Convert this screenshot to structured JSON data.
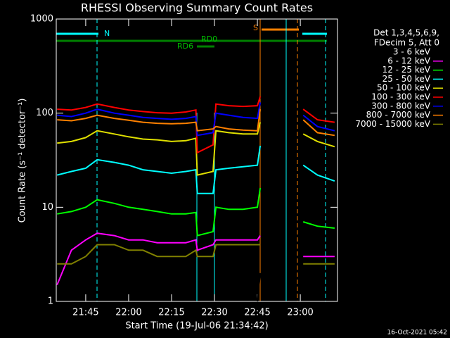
{
  "chart_data": {
    "type": "line",
    "title": "RHESSI Observing Summary Count Rates",
    "xlabel": "Start Time (19-Jul-06 21:34:42)",
    "ylabel": "Count Rate (s⁻¹ detector⁻¹)",
    "legend_title": [
      "Det 1,3,4,5,6,9,",
      "FDecim 5, Att 0"
    ],
    "footer": "16-Oct-2021 05:42",
    "annotations": [
      "N",
      "S",
      "RD0",
      "RD6"
    ],
    "log_y": true,
    "xlim": [
      1294.7,
      1393
    ],
    "xticks": [
      {
        "value": 1305,
        "label": "21:45"
      },
      {
        "value": 1320,
        "label": "22:00"
      },
      {
        "value": 1335,
        "label": "22:15"
      },
      {
        "value": 1350,
        "label": "22:30"
      },
      {
        "value": 1365,
        "label": "22:45"
      },
      {
        "value": 1380,
        "label": "23:00"
      }
    ],
    "ylim": [
      1,
      1000
    ],
    "yticks": [
      1,
      10,
      100,
      1000
    ],
    "x": [
      1295,
      1300,
      1305,
      1309,
      1315,
      1320,
      1325,
      1330,
      1335,
      1340,
      1343.5,
      1344,
      1349.5,
      1350.5,
      1355,
      1360,
      1365,
      1366,
      1373,
      1381,
      1386,
      1392
    ],
    "series": [
      {
        "name": "3 - 6 keV",
        "color": "#000000",
        "values": [
          null,
          null,
          null,
          null,
          null,
          null,
          null,
          null,
          null,
          null,
          null,
          null,
          null,
          null,
          null,
          null,
          1,
          2,
          null,
          null,
          null,
          null
        ]
      },
      {
        "name": "6 - 12 keV",
        "color": "#ff00ff",
        "values": [
          1.5,
          3.5,
          4.5,
          5.3,
          5,
          4.5,
          4.5,
          4.2,
          4.2,
          4.2,
          4.5,
          3.5,
          4,
          4.5,
          4.5,
          4.5,
          4.5,
          5,
          null,
          3,
          3,
          3
        ]
      },
      {
        "name": "12 - 25 keV",
        "color": "#00ff00",
        "values": [
          8.5,
          9,
          10,
          12,
          11,
          10,
          9.5,
          9,
          8.5,
          8.5,
          8.8,
          5,
          5.5,
          10,
          9.5,
          9.5,
          10,
          16,
          null,
          7,
          6.3,
          6
        ]
      },
      {
        "name": "25 - 50 keV",
        "color": "#00ffff",
        "values": [
          22,
          24,
          26,
          32,
          30,
          28,
          25,
          24,
          23,
          24,
          25,
          14,
          14,
          25,
          26,
          27,
          28,
          45,
          null,
          28,
          22,
          19
        ]
      },
      {
        "name": "50 - 100 keV",
        "color": "#e0e000",
        "values": [
          48,
          50,
          55,
          65,
          60,
          56,
          53,
          52,
          50,
          51,
          54,
          22,
          24,
          65,
          62,
          60,
          60,
          80,
          null,
          60,
          50,
          44
        ]
      },
      {
        "name": "100 - 300 keV",
        "color": "#ff0000",
        "values": [
          110,
          108,
          115,
          125,
          115,
          108,
          104,
          101,
          100,
          103,
          108,
          38,
          46,
          125,
          120,
          118,
          120,
          150,
          null,
          110,
          85,
          80
        ]
      },
      {
        "name": "300 - 800 keV",
        "color": "#0000ff",
        "values": [
          95,
          92,
          100,
          110,
          100,
          95,
          90,
          88,
          86,
          88,
          92,
          58,
          62,
          100,
          95,
          90,
          88,
          130,
          null,
          95,
          72,
          65
        ]
      },
      {
        "name": "800 - 7000 keV",
        "color": "#ff8000",
        "values": [
          85,
          83,
          88,
          95,
          88,
          84,
          80,
          78,
          77,
          78,
          80,
          65,
          68,
          72,
          68,
          66,
          65,
          110,
          null,
          85,
          62,
          58
        ]
      },
      {
        "name": "7000 - 15000 keV",
        "color": "#808000",
        "values": [
          2.5,
          2.5,
          3,
          4,
          4,
          3.5,
          3.5,
          3,
          3,
          3,
          3.5,
          3,
          3,
          4,
          4,
          4,
          4,
          4,
          null,
          2.5,
          2.5,
          2.5
        ]
      }
    ]
  }
}
